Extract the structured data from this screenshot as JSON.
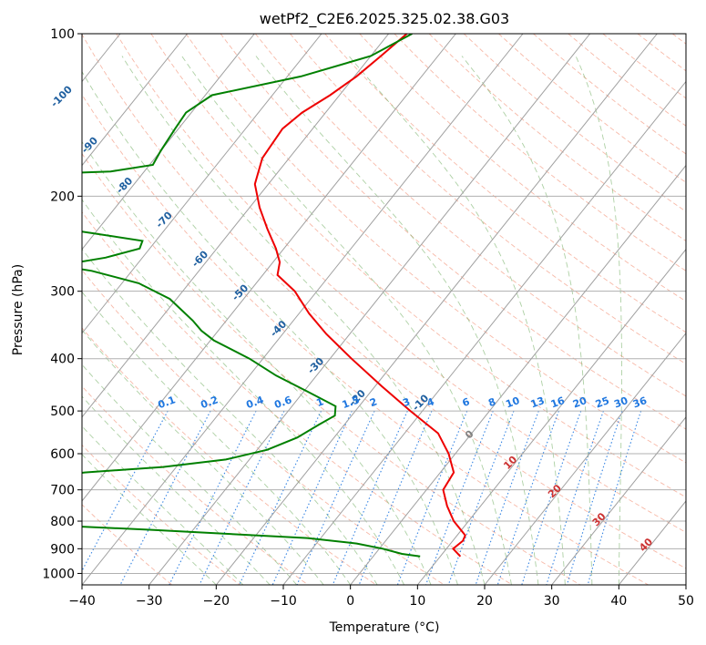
{
  "chart_data": {
    "type": "line",
    "subtype": "skew-t log-p",
    "title": "wetPf2_C2E6.2025.325.02.38.G03",
    "xlabel": "Temperature (°C)",
    "ylabel": "Pressure (hPa)",
    "xlim": [
      -40,
      50
    ],
    "ylim": [
      1050,
      100
    ],
    "y_scale": "log",
    "grid": true,
    "x_ticks": [
      "−40",
      "−30",
      "−20",
      "−10",
      "0",
      "10",
      "20",
      "30",
      "40",
      "50"
    ],
    "x_tick_values": [
      -40,
      -30,
      -20,
      -10,
      0,
      10,
      20,
      30,
      40,
      50
    ],
    "y_ticks": [
      "100",
      "200",
      "300",
      "400",
      "500",
      "600",
      "700",
      "800",
      "900",
      "1000"
    ],
    "y_tick_values": [
      100,
      200,
      300,
      400,
      500,
      600,
      700,
      800,
      900,
      1000
    ],
    "series": [
      {
        "role": "temperature",
        "color": "#ee0000",
        "points": [
          [
            100,
            -57.3
          ],
          [
            110,
            -58.5
          ],
          [
            120,
            -59.7
          ],
          [
            130,
            -61.4
          ],
          [
            140,
            -63.5
          ],
          [
            150,
            -64.5
          ],
          [
            170,
            -64.0
          ],
          [
            190,
            -62.0
          ],
          [
            210,
            -58.5
          ],
          [
            230,
            -54.8
          ],
          [
            250,
            -51.2
          ],
          [
            265,
            -49.0
          ],
          [
            280,
            -47.8
          ],
          [
            300,
            -43.3
          ],
          [
            330,
            -38.5
          ],
          [
            360,
            -33.5
          ],
          [
            400,
            -26.8
          ],
          [
            450,
            -19.0
          ],
          [
            500,
            -11.8
          ],
          [
            550,
            -5.0
          ],
          [
            600,
            -1.0
          ],
          [
            650,
            2.0
          ],
          [
            700,
            2.5
          ],
          [
            750,
            5.0
          ],
          [
            800,
            7.8
          ],
          [
            850,
            11.2
          ],
          [
            870,
            11.5
          ],
          [
            900,
            11.0
          ],
          [
            930,
            13.0
          ]
        ]
      },
      {
        "role": "dewpoint",
        "color": "#008000",
        "points": [
          [
            100,
            -56.5
          ],
          [
            110,
            -60.0
          ],
          [
            120,
            -68.0
          ],
          [
            130,
            -79.0
          ],
          [
            140,
            -80.8
          ],
          [
            150,
            -80.5
          ],
          [
            165,
            -80.0
          ],
          [
            175,
            -79.5
          ],
          [
            180,
            -85.0
          ],
          [
            182,
            -95.0
          ],
          [
            200,
            -98.5
          ],
          [
            220,
            -100.0
          ],
          [
            223,
            -98.0
          ],
          [
            230,
            -85.0
          ],
          [
            242,
            -72.0
          ],
          [
            250,
            -71.5
          ],
          [
            260,
            -75.5
          ],
          [
            265,
            -79.0
          ],
          [
            270,
            -80.5
          ],
          [
            275,
            -76.0
          ],
          [
            290,
            -67.5
          ],
          [
            310,
            -61.0
          ],
          [
            340,
            -55.0
          ],
          [
            355,
            -52.5
          ],
          [
            370,
            -49.5
          ],
          [
            400,
            -42.0
          ],
          [
            430,
            -36.0
          ],
          [
            460,
            -29.5
          ],
          [
            490,
            -23.5
          ],
          [
            510,
            -22.5
          ],
          [
            530,
            -23.8
          ],
          [
            560,
            -25.5
          ],
          [
            590,
            -28.5
          ],
          [
            615,
            -33.5
          ],
          [
            635,
            -42.0
          ],
          [
            650,
            -53.0
          ],
          [
            665,
            -59.0
          ],
          [
            680,
            -58.0
          ],
          [
            700,
            -55.5
          ],
          [
            720,
            -53.0
          ],
          [
            740,
            -52.0
          ],
          [
            760,
            -55.5
          ],
          [
            775,
            -54.0
          ],
          [
            790,
            -49.5
          ],
          [
            800,
            -53.5
          ],
          [
            810,
            -56.0
          ],
          [
            830,
            -36.5
          ],
          [
            860,
            -12.0
          ],
          [
            880,
            -4.0
          ],
          [
            900,
            0.5
          ],
          [
            920,
            4.0
          ],
          [
            930,
            7.0
          ]
        ]
      }
    ],
    "annotations": {
      "isotherms_labels": [
        "-100",
        "-90",
        "-80",
        "-70",
        "-60",
        "-50",
        "-40",
        "-30",
        "-20",
        "-10"
      ],
      "mixing_ratio_labels": [
        "0.1",
        "0.2",
        "0.4",
        "0.6",
        "1",
        "1.5",
        "2",
        "3",
        "4",
        "6",
        "8",
        "10",
        "13",
        "16",
        "20",
        "25",
        "30",
        "36"
      ],
      "isotherm_zero_label": "0",
      "warm_labels": [
        "10",
        "20",
        "30",
        "40"
      ]
    }
  }
}
